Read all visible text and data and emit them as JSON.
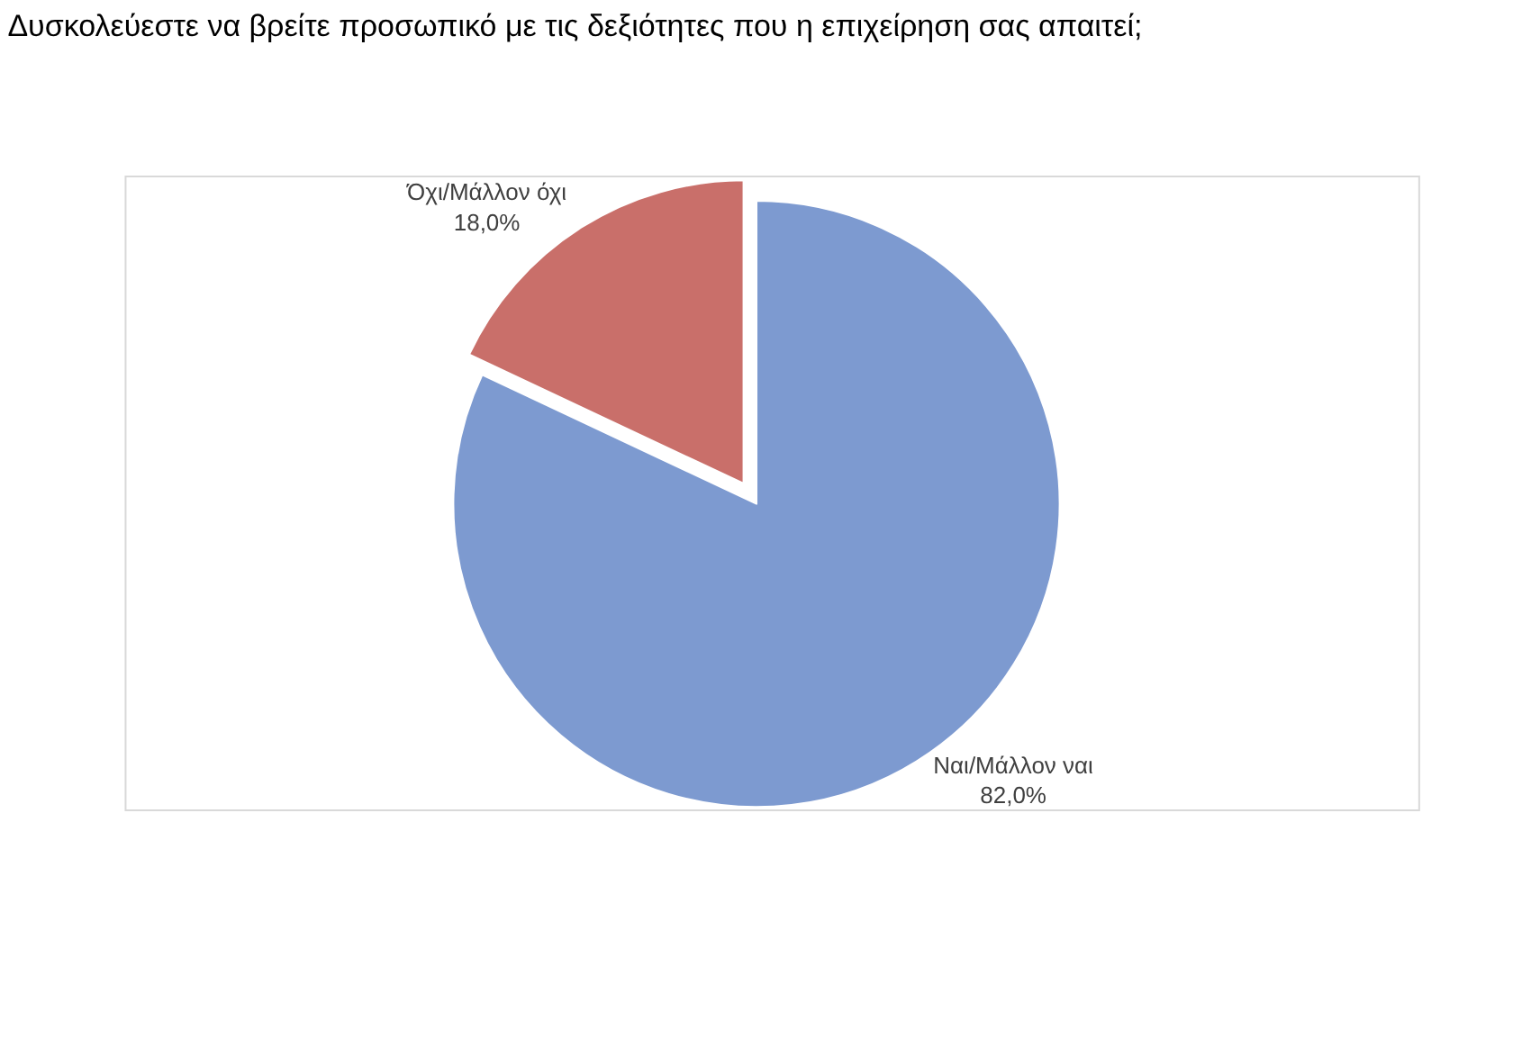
{
  "chart_data": {
    "type": "pie",
    "title": "Δυσκολεύεστε να βρείτε προσωπικό με τις δεξιότητες που η επιχείρηση σας απαιτεί;",
    "categories": [
      "Ναι/Μάλλον ναι",
      "Όχι/Μάλλον όχι"
    ],
    "values": [
      82,
      18
    ],
    "value_labels": [
      "82,0%",
      "18,0%"
    ],
    "colors": [
      "#7d9ad0",
      "#c96f6a"
    ],
    "legend": false
  }
}
